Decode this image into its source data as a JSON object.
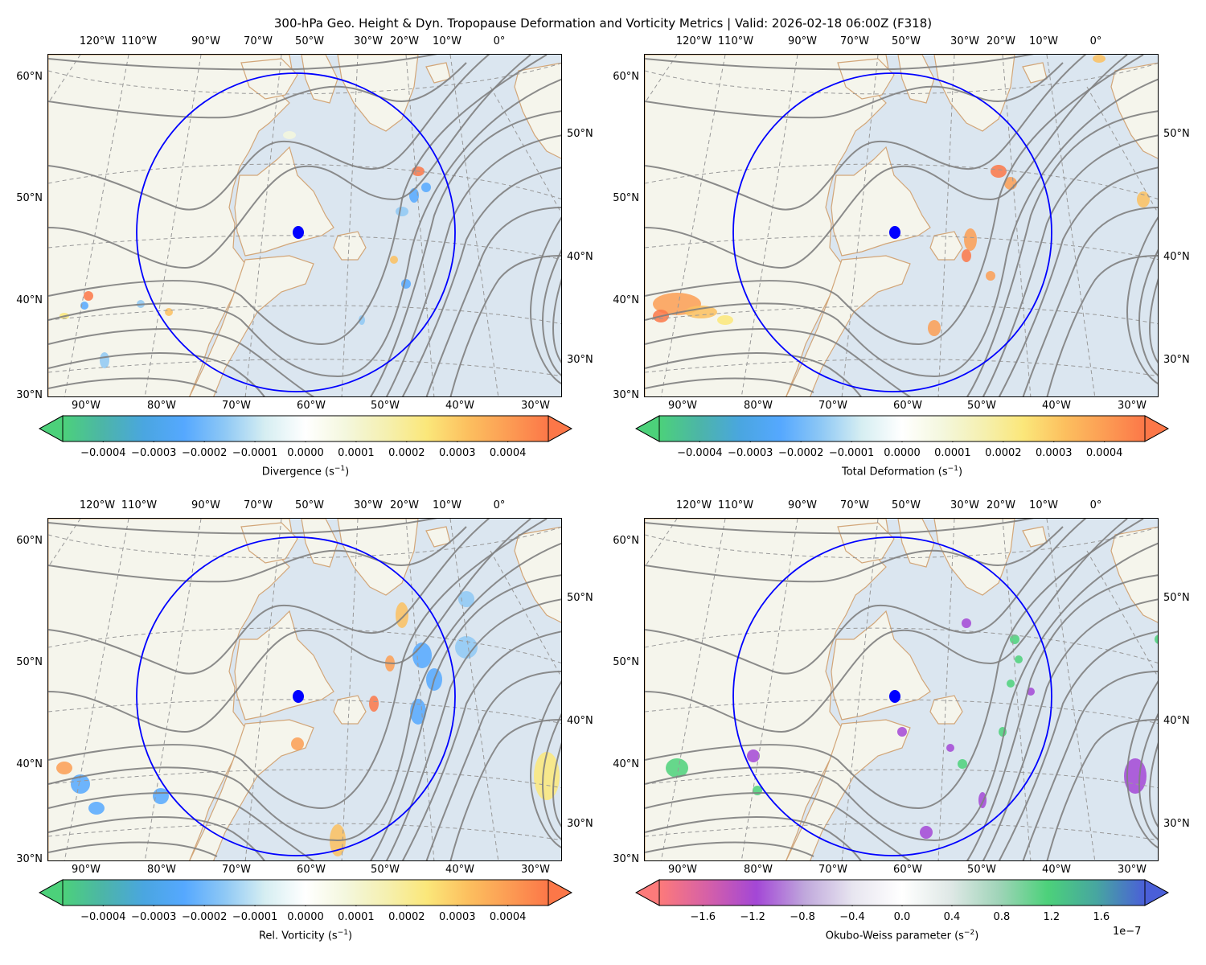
{
  "title": "300-hPa Geo. Height & Dyn. Tropopause Deformation and Vorticity Metrics |  Valid: 2026-02-18 06:00Z (F318)",
  "map": {
    "top_lon_labels": [
      "120°W",
      "110°W",
      "90°W",
      "70°W",
      "50°W",
      "30°W",
      "20°W",
      "10°W",
      "0°"
    ],
    "bottom_lon_labels": [
      "90°W",
      "80°W",
      "70°W",
      "60°W",
      "50°W",
      "40°W",
      "30°W"
    ],
    "left_lat_labels": [
      "60°N",
      "50°N",
      "40°N",
      "30°N"
    ],
    "right_lat_labels": [
      "50°N",
      "40°N",
      "30°N"
    ],
    "center_marker": {
      "lat": 51.5,
      "lon": -61.5,
      "color": "#0000ff"
    },
    "radius_circle_color": "#0000ff",
    "contour_color": "#7f7f7f",
    "coastline_color": "#d2a679",
    "land_color": "#f5f5ec",
    "ocean_color": "#dbe6f0"
  },
  "panels": [
    {
      "id": "divergence",
      "colorbar": {
        "label": "Divergence (s",
        "unit_exp": "−1",
        "unit_close": ")",
        "ticks": [
          "−0.0004",
          "−0.0003",
          "−0.0002",
          "−0.0001",
          "0.0000",
          "0.0001",
          "0.0002",
          "0.0003",
          "0.0004"
        ],
        "range": [
          -0.00048,
          0.00048
        ],
        "colors": [
          "#4cd17a",
          "#4cb5a8",
          "#4aa6e0",
          "#55a8ff",
          "#8ec8f5",
          "#d6eef2",
          "#ffffff",
          "#f4f7dd",
          "#f5f0b0",
          "#fbe77a",
          "#fcc05f",
          "#fc9d54",
          "#fc7748"
        ],
        "multiplier": ""
      }
    },
    {
      "id": "total-deformation",
      "colorbar": {
        "label": "Total Deformation (s",
        "unit_exp": "−1",
        "unit_close": ")",
        "ticks": [
          "−0.0004",
          "−0.0003",
          "−0.0002",
          "−0.0001",
          "0.0000",
          "0.0001",
          "0.0002",
          "0.0003",
          "0.0004"
        ],
        "range": [
          -0.00048,
          0.00048
        ],
        "colors": [
          "#4cd17a",
          "#4cb5a8",
          "#4aa6e0",
          "#55a8ff",
          "#8ec8f5",
          "#d6eef2",
          "#ffffff",
          "#f4f7dd",
          "#f5f0b0",
          "#fbe77a",
          "#fcc05f",
          "#fc9d54",
          "#fc7748"
        ],
        "multiplier": ""
      }
    },
    {
      "id": "relative-vorticity",
      "colorbar": {
        "label": "Rel. Vorticity (s",
        "unit_exp": "−1",
        "unit_close": ")",
        "ticks": [
          "−0.0004",
          "−0.0003",
          "−0.0002",
          "−0.0001",
          "0.0000",
          "0.0001",
          "0.0002",
          "0.0003",
          "0.0004"
        ],
        "range": [
          -0.00048,
          0.00048
        ],
        "colors": [
          "#4cd17a",
          "#4cb5a8",
          "#4aa6e0",
          "#55a8ff",
          "#8ec8f5",
          "#d6eef2",
          "#ffffff",
          "#f4f7dd",
          "#f5f0b0",
          "#fbe77a",
          "#fcc05f",
          "#fc9d54",
          "#fc7748"
        ],
        "multiplier": ""
      }
    },
    {
      "id": "okubo-weiss",
      "colorbar": {
        "label": "Okubo-Weiss parameter (s",
        "unit_exp": "−2",
        "unit_close": ")",
        "ticks": [
          "−1.6",
          "−1.2",
          "−0.8",
          "−0.4",
          "0.0",
          "0.4",
          "0.8",
          "1.2",
          "1.6"
        ],
        "range": [
          -1.95,
          1.95
        ],
        "colors": [
          "#fd7a7a",
          "#d560a8",
          "#a347d6",
          "#c0a8dc",
          "#e8e6f0",
          "#ffffff",
          "#dfe8e6",
          "#9fd4b8",
          "#4cd17a",
          "#47a6a0",
          "#4a5fd8"
        ],
        "multiplier": "1e−7"
      }
    }
  ]
}
